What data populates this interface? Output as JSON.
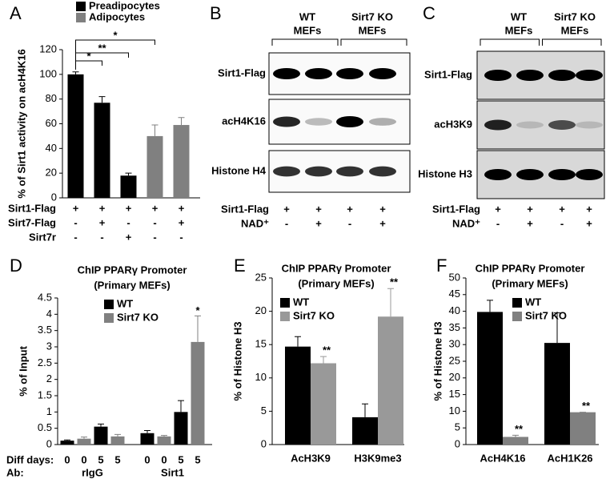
{
  "panel_labels": [
    "A",
    "B",
    "C",
    "D",
    "E",
    "F"
  ],
  "chart_data": [
    {
      "type": "bar",
      "ylabel": "% of Sirt1 activity on acH4K16",
      "categories": [
        null,
        null,
        null,
        null,
        null
      ],
      "series": [
        {
          "name": "Preadipocytes",
          "color": "#000000",
          "values": [
            100,
            77,
            18,
            null,
            null
          ],
          "errors": [
            2,
            5,
            2,
            null,
            null
          ]
        },
        {
          "name": "Adipocytes",
          "color": "#808080",
          "values": [
            null,
            null,
            null,
            50,
            59
          ],
          "errors": [
            null,
            null,
            null,
            9,
            6
          ]
        }
      ],
      "ylim": [
        0,
        120
      ],
      "yticks": [
        0,
        20,
        40,
        60,
        80,
        100,
        120
      ],
      "annotations": [
        "*",
        "**",
        "*"
      ],
      "conditions": [
        {
          "label": "Sirt1-Flag",
          "values": [
            "+",
            "+",
            "+",
            "+",
            "+"
          ]
        },
        {
          "label": "Sirt7-Flag",
          "values": [
            "-",
            "+",
            "-",
            "-",
            "+"
          ]
        },
        {
          "label": "Sirt7r",
          "values": [
            "-",
            "-",
            "+",
            "-",
            "-"
          ]
        }
      ]
    },
    {
      "type": "bar",
      "title": [
        "ChIP PPARγ Promoter",
        "(Primary MEFs)"
      ],
      "ylabel": "% of Input",
      "categories": [
        "0",
        "0",
        "5",
        "5",
        "0",
        "0",
        "5",
        "5"
      ],
      "x_label": "Diff days:",
      "groups_label": "Ab:",
      "groups": [
        "rIgG",
        "Sirt1"
      ],
      "series": [
        {
          "name": "WT",
          "color": "#000000",
          "values": [
            0.12,
            null,
            0.55,
            null,
            0.35,
            null,
            1.0,
            null
          ],
          "errors": [
            0.02,
            null,
            0.08,
            null,
            0.08,
            null,
            0.35,
            null
          ]
        },
        {
          "name": "Sirt7 KO",
          "color": "#808080",
          "values": [
            null,
            0.18,
            null,
            0.25,
            null,
            0.25,
            null,
            3.15
          ],
          "errors": [
            null,
            0.05,
            null,
            0.06,
            null,
            0.03,
            null,
            0.8
          ]
        }
      ],
      "ylim": [
        0,
        4.5
      ],
      "yticks": [
        0,
        0.5,
        1,
        1.5,
        2,
        2.5,
        3,
        3.5,
        4,
        4.5
      ],
      "annotations": [
        "*"
      ]
    },
    {
      "type": "bar",
      "title": [
        "ChIP PPARγ Promoter",
        "(Primary MEFs)"
      ],
      "ylabel": "% of Histone H3",
      "categories": [
        "AcH3K9",
        "H3K9me3"
      ],
      "series": [
        {
          "name": "WT",
          "color": "#000000",
          "values": [
            14.7,
            4.1
          ],
          "errors": [
            1.5,
            2.0
          ]
        },
        {
          "name": "Sirt7 KO",
          "color": "#999999",
          "values": [
            12.2,
            19.2
          ],
          "errors": [
            1.0,
            4.2
          ]
        }
      ],
      "ylim": [
        0,
        25
      ],
      "yticks": [
        0,
        5,
        10,
        15,
        20,
        25
      ],
      "annotations": [
        "**",
        "**"
      ]
    },
    {
      "type": "bar",
      "title": [
        "ChIP PPARγ Promoter",
        "(Primary MEFs)"
      ],
      "ylabel": "% of Histone H3",
      "categories": [
        "AcH4K16",
        "AcH1K26"
      ],
      "series": [
        {
          "name": "WT",
          "color": "#000000",
          "values": [
            39.8,
            30.5
          ],
          "errors": [
            3.5,
            9
          ]
        },
        {
          "name": "Sirt7 KO",
          "color": "#808080",
          "values": [
            2.3,
            9.7
          ],
          "errors": [
            0.5,
            0
          ]
        }
      ],
      "ylim": [
        0,
        50
      ],
      "yticks": [
        0,
        5,
        10,
        15,
        20,
        25,
        30,
        35,
        40,
        45,
        50
      ],
      "annotations": [
        "**",
        "**"
      ]
    }
  ],
  "blots": [
    {
      "headers": [
        [
          "WT",
          "MEFs"
        ],
        [
          "Sirt7 KO",
          "MEFs"
        ]
      ],
      "rows": [
        "Sirt1-Flag",
        "acH4K16",
        "Histone H4"
      ],
      "conditions": [
        {
          "label": "Sirt1-Flag",
          "values": [
            "+",
            "+",
            "+",
            "+"
          ]
        },
        {
          "label": "NAD⁺",
          "values": [
            "-",
            "+",
            "-",
            "+"
          ]
        }
      ]
    },
    {
      "headers": [
        [
          "WT",
          "MEFs"
        ],
        [
          "Sirt7 KO",
          "MEFs"
        ]
      ],
      "rows": [
        "Sirt1-Flag",
        "acH3K9",
        "Histone H3"
      ],
      "conditions": [
        {
          "label": "Sirt1-Flag",
          "values": [
            "+",
            "+",
            "+",
            "+"
          ]
        },
        {
          "label": "NAD⁺",
          "values": [
            "-",
            "+",
            "-",
            "+"
          ]
        }
      ]
    }
  ]
}
